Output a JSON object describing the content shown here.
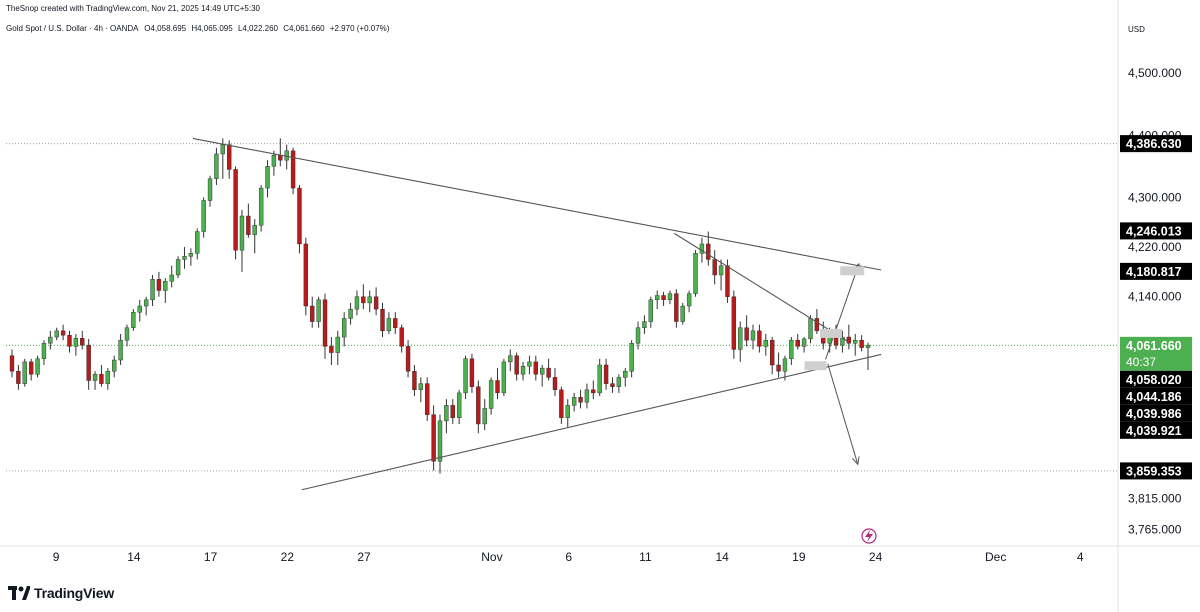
{
  "header": {
    "attribution": "TheSnop created with TradingView.com, Nov 21, 2025 14:49 UTC+5:30",
    "symbol": "Gold Spot / U.S. Dollar · 4h · OANDA",
    "open": "O4,058.695",
    "high": "H4,065.095",
    "low": "L4,022.260",
    "close": "C4,061.660",
    "change": "+2.970 (+0.07%)",
    "currency": "USD"
  },
  "footer": {
    "brand": "TradingView"
  },
  "colors": {
    "up": "#4caf50",
    "down": "#b71c1c",
    "wick": "#333333",
    "current": "#4caf50",
    "label_bg": "#000000",
    "line": "#555555",
    "dotted": "#9e9e9e"
  },
  "chart_data": {
    "type": "candlestick",
    "timeframe": "4h",
    "y_axis": {
      "min": 3740,
      "max": 4560,
      "ticks": [
        {
          "value": 4500,
          "label": "4,500.000"
        },
        {
          "value": 4400,
          "label": "4,400.000"
        },
        {
          "value": 4300,
          "label": "4,300.000"
        },
        {
          "value": 4220,
          "label": "4,220.000"
        },
        {
          "value": 4140,
          "label": "4,140.000"
        },
        {
          "value": 3815,
          "label": "3,815.000"
        },
        {
          "value": 3765,
          "label": "3,765.000"
        }
      ]
    },
    "x_axis": {
      "ticks": [
        {
          "label": "9",
          "pos": 0.045
        },
        {
          "label": "14",
          "pos": 0.115
        },
        {
          "label": "17",
          "pos": 0.184
        },
        {
          "label": "22",
          "pos": 0.253
        },
        {
          "label": "27",
          "pos": 0.322
        },
        {
          "label": "Nov",
          "pos": 0.437
        },
        {
          "label": "6",
          "pos": 0.506
        },
        {
          "label": "11",
          "pos": 0.575
        },
        {
          "label": "14",
          "pos": 0.644
        },
        {
          "label": "19",
          "pos": 0.713
        },
        {
          "label": "24",
          "pos": 0.782
        },
        {
          "label": "Dec",
          "pos": 0.89
        },
        {
          "label": "4",
          "pos": 0.966
        }
      ]
    },
    "price_labels": [
      {
        "value": 4386.63,
        "label": "4,386.630",
        "style": "dark"
      },
      {
        "value": 4246.013,
        "label": "4,246.013",
        "style": "dark"
      },
      {
        "value": 4180.817,
        "label": "4,180.817",
        "style": "dark"
      },
      {
        "value": 4061.66,
        "label": "4,061.660",
        "sub": "40:37",
        "style": "current"
      },
      {
        "value": 4058.02,
        "label": "4,058.020",
        "style": "dark"
      },
      {
        "value": 4044.186,
        "label": "4,044.186",
        "style": "dark"
      },
      {
        "value": 4039.986,
        "label": "4,039.986",
        "style": "dark"
      },
      {
        "value": 4039.921,
        "label": "4,039.921",
        "style": "dark"
      },
      {
        "value": 3859.353,
        "label": "3,859.353",
        "style": "dark"
      }
    ],
    "horizontal_levels": [
      {
        "value": 4386.63,
        "style": "dotted"
      },
      {
        "value": 4061.66,
        "style": "current"
      },
      {
        "value": 3859.353,
        "style": "dotted"
      }
    ],
    "trendlines": [
      {
        "from": [
          0.168,
          4395
        ],
        "to": [
          0.787,
          4183
        ]
      },
      {
        "from": [
          0.266,
          3829
        ],
        "to": [
          0.787,
          4047
        ]
      },
      {
        "from": [
          0.601,
          4242
        ],
        "to": [
          0.756,
          4069
        ]
      }
    ],
    "arrows": [
      {
        "from": [
          0.737,
          4039
        ],
        "to": [
          0.767,
          4193
        ]
      },
      {
        "from": [
          0.739,
          4032
        ],
        "to": [
          0.766,
          3870
        ]
      }
    ],
    "markers": [
      {
        "at": [
          0.761,
          4181
        ],
        "type": "rect"
      },
      {
        "at": [
          0.742,
          4080
        ],
        "type": "rect"
      },
      {
        "at": [
          0.728,
          4028
        ],
        "type": "rect"
      }
    ],
    "candles": [
      {
        "o": 4045,
        "h": 4055,
        "l": 4010,
        "c": 4020
      },
      {
        "o": 4020,
        "h": 4030,
        "l": 3990,
        "c": 4000
      },
      {
        "o": 4000,
        "h": 4040,
        "l": 3995,
        "c": 4035
      },
      {
        "o": 4035,
        "h": 4040,
        "l": 4005,
        "c": 4015
      },
      {
        "o": 4015,
        "h": 4045,
        "l": 4010,
        "c": 4040
      },
      {
        "o": 4040,
        "h": 4070,
        "l": 4030,
        "c": 4065
      },
      {
        "o": 4065,
        "h": 4085,
        "l": 4055,
        "c": 4075
      },
      {
        "o": 4075,
        "h": 4090,
        "l": 4070,
        "c": 4085
      },
      {
        "o": 4085,
        "h": 4095,
        "l": 4070,
        "c": 4078
      },
      {
        "o": 4078,
        "h": 4085,
        "l": 4050,
        "c": 4060
      },
      {
        "o": 4060,
        "h": 4080,
        "l": 4045,
        "c": 4073
      },
      {
        "o": 4073,
        "h": 4085,
        "l": 4055,
        "c": 4062
      },
      {
        "o": 4062,
        "h": 4072,
        "l": 3990,
        "c": 4005
      },
      {
        "o": 4005,
        "h": 4020,
        "l": 3990,
        "c": 4015
      },
      {
        "o": 4015,
        "h": 4030,
        "l": 3995,
        "c": 4000
      },
      {
        "o": 4000,
        "h": 4025,
        "l": 3990,
        "c": 4020
      },
      {
        "o": 4020,
        "h": 4045,
        "l": 4010,
        "c": 4038
      },
      {
        "o": 4038,
        "h": 4080,
        "l": 4030,
        "c": 4070
      },
      {
        "o": 4070,
        "h": 4095,
        "l": 4060,
        "c": 4090
      },
      {
        "o": 4090,
        "h": 4120,
        "l": 4085,
        "c": 4115
      },
      {
        "o": 4115,
        "h": 4135,
        "l": 4100,
        "c": 4125
      },
      {
        "o": 4125,
        "h": 4140,
        "l": 4110,
        "c": 4135
      },
      {
        "o": 4135,
        "h": 4175,
        "l": 4125,
        "c": 4168
      },
      {
        "o": 4168,
        "h": 4180,
        "l": 4140,
        "c": 4150
      },
      {
        "o": 4150,
        "h": 4170,
        "l": 4130,
        "c": 4165
      },
      {
        "o": 4165,
        "h": 4190,
        "l": 4155,
        "c": 4175
      },
      {
        "o": 4175,
        "h": 4205,
        "l": 4170,
        "c": 4200
      },
      {
        "o": 4200,
        "h": 4220,
        "l": 4185,
        "c": 4205
      },
      {
        "o": 4205,
        "h": 4218,
        "l": 4190,
        "c": 4210
      },
      {
        "o": 4210,
        "h": 4250,
        "l": 4200,
        "c": 4245
      },
      {
        "o": 4245,
        "h": 4300,
        "l": 4235,
        "c": 4295
      },
      {
        "o": 4295,
        "h": 4335,
        "l": 4285,
        "c": 4330
      },
      {
        "o": 4330,
        "h": 4380,
        "l": 4320,
        "c": 4370
      },
      {
        "o": 4370,
        "h": 4395,
        "l": 4330,
        "c": 4385
      },
      {
        "o": 4385,
        "h": 4392,
        "l": 4330,
        "c": 4345
      },
      {
        "o": 4345,
        "h": 4350,
        "l": 4200,
        "c": 4215
      },
      {
        "o": 4215,
        "h": 4280,
        "l": 4180,
        "c": 4270
      },
      {
        "o": 4270,
        "h": 4290,
        "l": 4235,
        "c": 4240
      },
      {
        "o": 4240,
        "h": 4265,
        "l": 4210,
        "c": 4255
      },
      {
        "o": 4255,
        "h": 4320,
        "l": 4245,
        "c": 4315
      },
      {
        "o": 4315,
        "h": 4360,
        "l": 4300,
        "c": 4350
      },
      {
        "o": 4350,
        "h": 4375,
        "l": 4335,
        "c": 4368
      },
      {
        "o": 4368,
        "h": 4395,
        "l": 4350,
        "c": 4360
      },
      {
        "o": 4360,
        "h": 4385,
        "l": 4345,
        "c": 4375
      },
      {
        "o": 4375,
        "h": 4380,
        "l": 4305,
        "c": 4315
      },
      {
        "o": 4315,
        "h": 4320,
        "l": 4210,
        "c": 4225
      },
      {
        "o": 4225,
        "h": 4235,
        "l": 4110,
        "c": 4125
      },
      {
        "o": 4125,
        "h": 4140,
        "l": 4090,
        "c": 4100
      },
      {
        "o": 4100,
        "h": 4140,
        "l": 4090,
        "c": 4135
      },
      {
        "o": 4135,
        "h": 4145,
        "l": 4040,
        "c": 4060
      },
      {
        "o": 4060,
        "h": 4075,
        "l": 4030,
        "c": 4050
      },
      {
        "o": 4050,
        "h": 4085,
        "l": 4030,
        "c": 4075
      },
      {
        "o": 4075,
        "h": 4115,
        "l": 4060,
        "c": 4105
      },
      {
        "o": 4105,
        "h": 4130,
        "l": 4095,
        "c": 4120
      },
      {
        "o": 4120,
        "h": 4150,
        "l": 4110,
        "c": 4140
      },
      {
        "o": 4140,
        "h": 4160,
        "l": 4120,
        "c": 4130
      },
      {
        "o": 4130,
        "h": 4150,
        "l": 4115,
        "c": 4140
      },
      {
        "o": 4140,
        "h": 4155,
        "l": 4110,
        "c": 4120
      },
      {
        "o": 4120,
        "h": 4130,
        "l": 4075,
        "c": 4085
      },
      {
        "o": 4085,
        "h": 4115,
        "l": 4080,
        "c": 4105
      },
      {
        "o": 4105,
        "h": 4115,
        "l": 4080,
        "c": 4090
      },
      {
        "o": 4090,
        "h": 4095,
        "l": 4050,
        "c": 4060
      },
      {
        "o": 4060,
        "h": 4070,
        "l": 4010,
        "c": 4020
      },
      {
        "o": 4020,
        "h": 4030,
        "l": 3980,
        "c": 3990
      },
      {
        "o": 3990,
        "h": 4010,
        "l": 3970,
        "c": 4000
      },
      {
        "o": 4000,
        "h": 4010,
        "l": 3940,
        "c": 3950
      },
      {
        "o": 3950,
        "h": 3965,
        "l": 3860,
        "c": 3875
      },
      {
        "o": 3875,
        "h": 3950,
        "l": 3855,
        "c": 3940
      },
      {
        "o": 3940,
        "h": 3975,
        "l": 3920,
        "c": 3965
      },
      {
        "o": 3965,
        "h": 3975,
        "l": 3935,
        "c": 3945
      },
      {
        "o": 3945,
        "h": 3990,
        "l": 3935,
        "c": 3985
      },
      {
        "o": 3985,
        "h": 4045,
        "l": 3975,
        "c": 4040
      },
      {
        "o": 4040,
        "h": 4048,
        "l": 3985,
        "c": 3995
      },
      {
        "o": 3995,
        "h": 4005,
        "l": 3920,
        "c": 3935
      },
      {
        "o": 3935,
        "h": 3975,
        "l": 3925,
        "c": 3960
      },
      {
        "o": 3960,
        "h": 4010,
        "l": 3950,
        "c": 4005
      },
      {
        "o": 4005,
        "h": 4025,
        "l": 3975,
        "c": 3985
      },
      {
        "o": 3985,
        "h": 4040,
        "l": 3980,
        "c": 4035
      },
      {
        "o": 4035,
        "h": 4055,
        "l": 4020,
        "c": 4045
      },
      {
        "o": 4045,
        "h": 4050,
        "l": 4005,
        "c": 4015
      },
      {
        "o": 4015,
        "h": 4035,
        "l": 4005,
        "c": 4028
      },
      {
        "o": 4028,
        "h": 4045,
        "l": 4015,
        "c": 4035
      },
      {
        "o": 4035,
        "h": 4045,
        "l": 4005,
        "c": 4015
      },
      {
        "o": 4015,
        "h": 4030,
        "l": 3995,
        "c": 4025
      },
      {
        "o": 4025,
        "h": 4040,
        "l": 4005,
        "c": 4010
      },
      {
        "o": 4010,
        "h": 4025,
        "l": 3980,
        "c": 3990
      },
      {
        "o": 3990,
        "h": 3995,
        "l": 3935,
        "c": 3945
      },
      {
        "o": 3945,
        "h": 3975,
        "l": 3930,
        "c": 3965
      },
      {
        "o": 3965,
        "h": 3985,
        "l": 3955,
        "c": 3978
      },
      {
        "o": 3978,
        "h": 3990,
        "l": 3960,
        "c": 3970
      },
      {
        "o": 3970,
        "h": 4000,
        "l": 3960,
        "c": 3990
      },
      {
        "o": 3990,
        "h": 4005,
        "l": 3975,
        "c": 3985
      },
      {
        "o": 3985,
        "h": 4040,
        "l": 3980,
        "c": 4030
      },
      {
        "o": 4030,
        "h": 4040,
        "l": 3990,
        "c": 4000
      },
      {
        "o": 4000,
        "h": 4010,
        "l": 3985,
        "c": 3995
      },
      {
        "o": 3995,
        "h": 4015,
        "l": 3985,
        "c": 4010
      },
      {
        "o": 4010,
        "h": 4025,
        "l": 3995,
        "c": 4020
      },
      {
        "o": 4020,
        "h": 4070,
        "l": 4010,
        "c": 4065
      },
      {
        "o": 4065,
        "h": 4100,
        "l": 4055,
        "c": 4090
      },
      {
        "o": 4090,
        "h": 4110,
        "l": 4080,
        "c": 4100
      },
      {
        "o": 4100,
        "h": 4140,
        "l": 4090,
        "c": 4135
      },
      {
        "o": 4135,
        "h": 4150,
        "l": 4120,
        "c": 4142
      },
      {
        "o": 4142,
        "h": 4148,
        "l": 4125,
        "c": 4135
      },
      {
        "o": 4135,
        "h": 4150,
        "l": 4128,
        "c": 4145
      },
      {
        "o": 4145,
        "h": 4152,
        "l": 4090,
        "c": 4100
      },
      {
        "o": 4100,
        "h": 4130,
        "l": 4095,
        "c": 4125
      },
      {
        "o": 4125,
        "h": 4150,
        "l": 4115,
        "c": 4145
      },
      {
        "o": 4145,
        "h": 4215,
        "l": 4140,
        "c": 4210
      },
      {
        "o": 4210,
        "h": 4235,
        "l": 4195,
        "c": 4225
      },
      {
        "o": 4225,
        "h": 4245,
        "l": 4190,
        "c": 4200
      },
      {
        "o": 4200,
        "h": 4215,
        "l": 4160,
        "c": 4175
      },
      {
        "o": 4175,
        "h": 4200,
        "l": 4150,
        "c": 4190
      },
      {
        "o": 4190,
        "h": 4200,
        "l": 4130,
        "c": 4140
      },
      {
        "o": 4140,
        "h": 4150,
        "l": 4040,
        "c": 4055
      },
      {
        "o": 4055,
        "h": 4100,
        "l": 4035,
        "c": 4090
      },
      {
        "o": 4090,
        "h": 4110,
        "l": 4060,
        "c": 4070
      },
      {
        "o": 4070,
        "h": 4095,
        "l": 4055,
        "c": 4085
      },
      {
        "o": 4085,
        "h": 4095,
        "l": 4050,
        "c": 4060
      },
      {
        "o": 4060,
        "h": 4080,
        "l": 4045,
        "c": 4070
      },
      {
        "o": 4070,
        "h": 4075,
        "l": 4015,
        "c": 4030
      },
      {
        "o": 4030,
        "h": 4050,
        "l": 4010,
        "c": 4020
      },
      {
        "o": 4020,
        "h": 4045,
        "l": 4005,
        "c": 4040
      },
      {
        "o": 4040,
        "h": 4075,
        "l": 4030,
        "c": 4070
      },
      {
        "o": 4070,
        "h": 4080,
        "l": 4055,
        "c": 4060
      },
      {
        "o": 4060,
        "h": 4075,
        "l": 4050,
        "c": 4072
      },
      {
        "o": 4072,
        "h": 4110,
        "l": 4065,
        "c": 4105
      },
      {
        "o": 4105,
        "h": 4120,
        "l": 4080,
        "c": 4085
      },
      {
        "o": 4085,
        "h": 4100,
        "l": 4055,
        "c": 4065
      },
      {
        "o": 4065,
        "h": 4090,
        "l": 4050,
        "c": 4080
      },
      {
        "o": 4080,
        "h": 4095,
        "l": 4055,
        "c": 4062
      },
      {
        "o": 4062,
        "h": 4085,
        "l": 4050,
        "c": 4075
      },
      {
        "o": 4075,
        "h": 4095,
        "l": 4055,
        "c": 4065
      },
      {
        "o": 4065,
        "h": 4080,
        "l": 4045,
        "c": 4070
      },
      {
        "o": 4070,
        "h": 4078,
        "l": 4052,
        "c": 4058
      },
      {
        "o": 4058,
        "h": 4066,
        "l": 4022,
        "c": 4062
      }
    ]
  }
}
